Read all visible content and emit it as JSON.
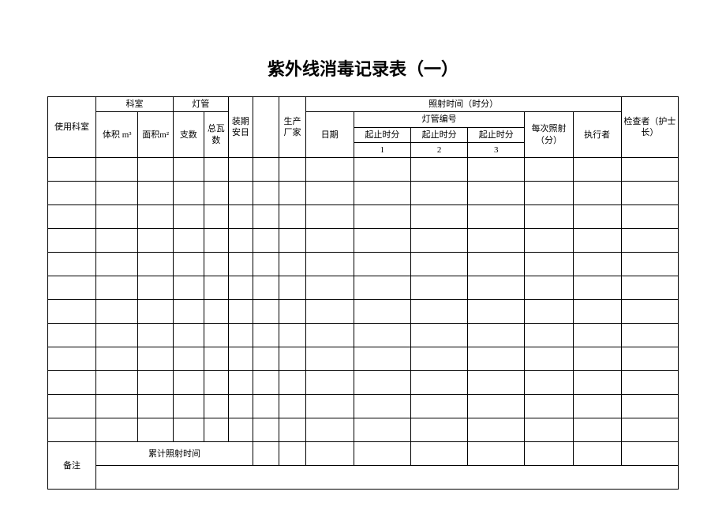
{
  "title": "紫外线消毒记录表（一）",
  "headers": {
    "use_dept": "使用科室",
    "dept": "科室",
    "volume": "体积 m³",
    "area": "面积m²",
    "lamp": "灯管",
    "count": "支数",
    "wattage": "总瓦数",
    "install_date": "装期安日",
    "manufacturer": "生产厂家",
    "irradiation_time": "照射时间（时分）",
    "date": "日期",
    "lamp_number": "灯管编号",
    "start_end": "起止时分",
    "num1": "1",
    "num2": "2",
    "num3": "3",
    "each_irradiation": "每次照射（分）",
    "executor": "执行者",
    "inspector": "检查者（护士长）",
    "remark": "备注",
    "total_time": "累计照射时间"
  },
  "col_widths": {
    "use_dept": 55,
    "volume": 48,
    "area": 40,
    "count": 35,
    "wattage": 28,
    "install_date": 28,
    "blank": 30,
    "manufacturer": 30,
    "date": 55,
    "lamp1": 65,
    "lamp2": 65,
    "lamp3": 65,
    "each": 55,
    "executor": 55,
    "inspector": 65
  },
  "data_rows": 12
}
